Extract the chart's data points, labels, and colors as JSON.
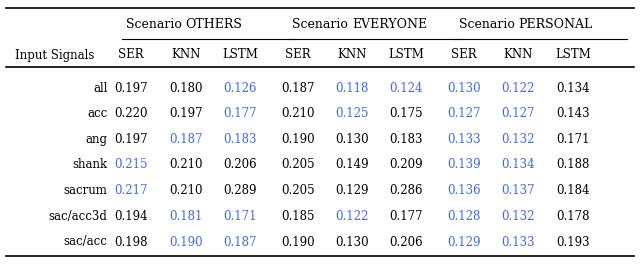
{
  "col_header_1": "Scenario OTHERS",
  "col_header_2": "Scenario EVERYONE",
  "col_header_3": "Scenario PERSONAL",
  "sub_headers": [
    "SER",
    "KNN",
    "LSTM"
  ],
  "row_header": "Input Signals",
  "rows": [
    "ALL",
    "ACC",
    "ANG",
    "SHANK",
    "SACRUM",
    "SAC/ACC3D",
    "SAC/ACC"
  ],
  "data": [
    [
      [
        0.197,
        false
      ],
      [
        0.18,
        false
      ],
      [
        0.126,
        true
      ],
      [
        0.187,
        false
      ],
      [
        0.118,
        true
      ],
      [
        0.124,
        true
      ],
      [
        0.13,
        true
      ],
      [
        0.122,
        true
      ],
      [
        0.134,
        false
      ]
    ],
    [
      [
        0.22,
        false
      ],
      [
        0.197,
        false
      ],
      [
        0.177,
        true
      ],
      [
        0.21,
        false
      ],
      [
        0.125,
        true
      ],
      [
        0.175,
        false
      ],
      [
        0.127,
        true
      ],
      [
        0.127,
        true
      ],
      [
        0.143,
        false
      ]
    ],
    [
      [
        0.197,
        false
      ],
      [
        0.187,
        true
      ],
      [
        0.183,
        true
      ],
      [
        0.19,
        false
      ],
      [
        0.13,
        false
      ],
      [
        0.183,
        false
      ],
      [
        0.133,
        true
      ],
      [
        0.132,
        true
      ],
      [
        0.171,
        false
      ]
    ],
    [
      [
        0.215,
        true
      ],
      [
        0.21,
        false
      ],
      [
        0.206,
        false
      ],
      [
        0.205,
        false
      ],
      [
        0.149,
        false
      ],
      [
        0.209,
        false
      ],
      [
        0.139,
        true
      ],
      [
        0.134,
        true
      ],
      [
        0.188,
        false
      ]
    ],
    [
      [
        0.217,
        true
      ],
      [
        0.21,
        false
      ],
      [
        0.289,
        false
      ],
      [
        0.205,
        false
      ],
      [
        0.129,
        false
      ],
      [
        0.286,
        false
      ],
      [
        0.136,
        true
      ],
      [
        0.137,
        true
      ],
      [
        0.184,
        false
      ]
    ],
    [
      [
        0.194,
        false
      ],
      [
        0.181,
        true
      ],
      [
        0.171,
        true
      ],
      [
        0.185,
        false
      ],
      [
        0.122,
        true
      ],
      [
        0.177,
        false
      ],
      [
        0.128,
        true
      ],
      [
        0.132,
        true
      ],
      [
        0.178,
        false
      ]
    ],
    [
      [
        0.198,
        false
      ],
      [
        0.19,
        true
      ],
      [
        0.187,
        true
      ],
      [
        0.19,
        false
      ],
      [
        0.13,
        false
      ],
      [
        0.206,
        false
      ],
      [
        0.129,
        true
      ],
      [
        0.133,
        true
      ],
      [
        0.193,
        false
      ]
    ]
  ],
  "blue_color": "#4169E1",
  "black_color": "#000000",
  "background_color": "#ffffff"
}
